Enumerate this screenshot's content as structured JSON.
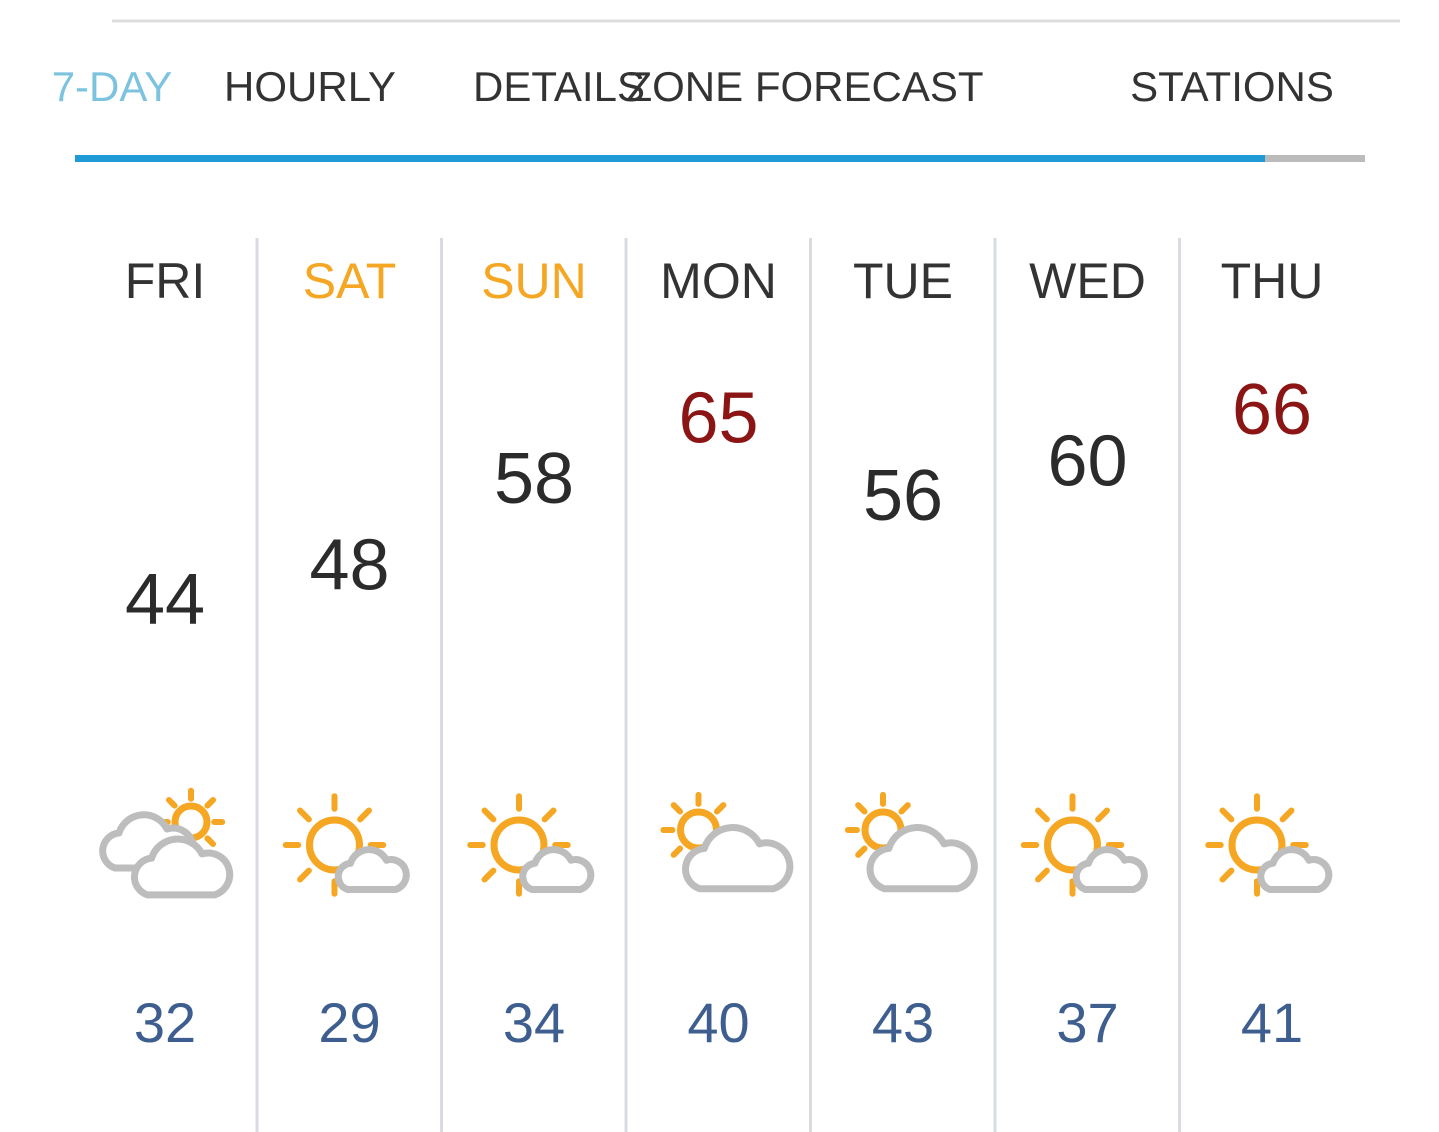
{
  "tabs": [
    {
      "label": "7-DAY",
      "active": true
    },
    {
      "label": "HOURLY",
      "active": false
    },
    {
      "label": "DETAILS",
      "active": false
    },
    {
      "label": "ZONE FORECAST",
      "active": false
    },
    {
      "label": "STATIONS",
      "active": false
    }
  ],
  "days": [
    {
      "name": "FRI",
      "weekend": false,
      "high": 44,
      "hot": false,
      "icon": "mostly-cloudy",
      "low": 32
    },
    {
      "name": "SAT",
      "weekend": true,
      "high": 48,
      "hot": false,
      "icon": "mostly-sunny",
      "low": 29
    },
    {
      "name": "SUN",
      "weekend": true,
      "high": 58,
      "hot": false,
      "icon": "mostly-sunny",
      "low": 34
    },
    {
      "name": "MON",
      "weekend": false,
      "high": 65,
      "hot": true,
      "icon": "partly-sunny",
      "low": 40
    },
    {
      "name": "TUE",
      "weekend": false,
      "high": 56,
      "hot": false,
      "icon": "partly-sunny",
      "low": 43
    },
    {
      "name": "WED",
      "weekend": false,
      "high": 60,
      "hot": false,
      "icon": "mostly-sunny",
      "low": 37
    },
    {
      "name": "THU",
      "weekend": false,
      "high": 66,
      "hot": true,
      "icon": "mostly-sunny",
      "low": 41
    }
  ]
}
